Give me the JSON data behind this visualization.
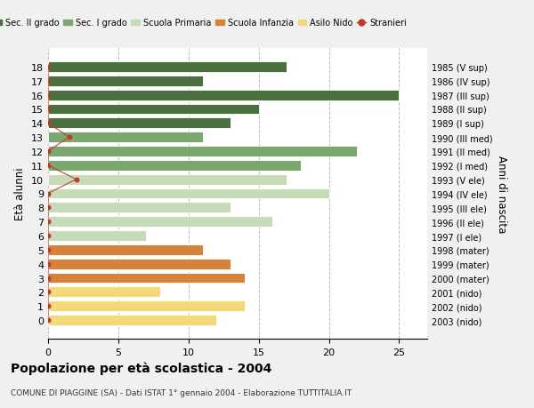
{
  "ages": [
    18,
    17,
    16,
    15,
    14,
    13,
    12,
    11,
    10,
    9,
    8,
    7,
    6,
    5,
    4,
    3,
    2,
    1,
    0
  ],
  "birth_years": [
    "1985 (V sup)",
    "1986 (IV sup)",
    "1987 (III sup)",
    "1988 (II sup)",
    "1989 (I sup)",
    "1990 (III med)",
    "1991 (II med)",
    "1992 (I med)",
    "1993 (V ele)",
    "1994 (IV ele)",
    "1995 (III ele)",
    "1996 (II ele)",
    "1997 (I ele)",
    "1998 (mater)",
    "1999 (mater)",
    "2000 (mater)",
    "2001 (nido)",
    "2002 (nido)",
    "2003 (nido)"
  ],
  "bar_values": [
    17,
    11,
    25,
    15,
    13,
    11,
    22,
    18,
    17,
    20,
    13,
    16,
    7,
    11,
    13,
    14,
    8,
    14,
    12
  ],
  "bar_colors": [
    "#4a7040",
    "#4a7040",
    "#4a7040",
    "#4a7040",
    "#4a7040",
    "#7ba870",
    "#7ba870",
    "#7ba870",
    "#c8dbb8",
    "#c8dbb8",
    "#c8dbb8",
    "#c8dbb8",
    "#c8dbb8",
    "#d4843a",
    "#d4843a",
    "#d4843a",
    "#f5d87a",
    "#f5d87a",
    "#f5d87a"
  ],
  "stranieri_x": [
    0,
    0,
    0,
    0,
    0,
    1.5,
    0,
    0,
    2,
    0,
    0,
    0,
    0,
    0,
    0,
    0,
    0,
    0,
    0
  ],
  "title": "Popolazione per età scolastica - 2004",
  "subtitle": "COMUNE DI PIAGGINE (SA) - Dati ISTAT 1° gennaio 2004 - Elaborazione TUTTITALIA.IT",
  "ylabel": "Età alunni",
  "ylabel_right": "Anni di nascita",
  "xlim_max": 27,
  "xticks": [
    0,
    5,
    10,
    15,
    20,
    25
  ],
  "legend_labels": [
    "Sec. II grado",
    "Sec. I grado",
    "Scuola Primaria",
    "Scuola Infanzia",
    "Asilo Nido",
    "Stranieri"
  ],
  "legend_colors": [
    "#4a7040",
    "#7ba870",
    "#c8dbb8",
    "#d4843a",
    "#f5d87a",
    "#c0392b"
  ],
  "bg_color": "#f0f0f0",
  "plot_bg_color": "#ffffff",
  "grid_color": "#bbbbbb",
  "stranieri_color": "#c0392b"
}
